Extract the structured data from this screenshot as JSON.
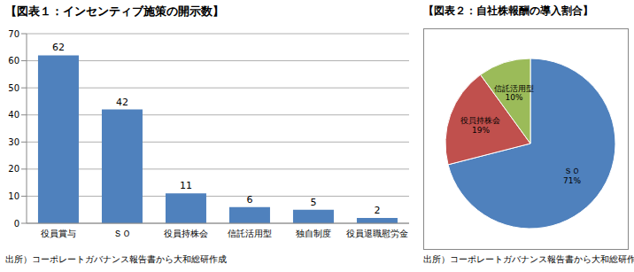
{
  "chart_data": [
    {
      "type": "bar",
      "title": "【図表１：インセンティブ施策の開示数】",
      "categories": [
        "役員賞与",
        "ＳＯ",
        "役員持株会",
        "信託活用型",
        "独自制度",
        "役員退職慰労金"
      ],
      "values": [
        62,
        42,
        11,
        6,
        5,
        2
      ],
      "color": "#4f81bd",
      "ylim": [
        0,
        70
      ],
      "yticks": [
        0,
        10,
        20,
        30,
        40,
        50,
        60,
        70
      ],
      "grid": true,
      "data_labels": true,
      "annotations": [
        "出所）コーポレートガバナンス報告書から大和総研作成"
      ]
    },
    {
      "type": "pie",
      "title": "【図表２：自社株報酬の導入割合】",
      "categories": [
        "ＳＯ",
        "役員持株会",
        "信託活用型"
      ],
      "values": [
        71,
        19,
        10
      ],
      "value_labels": [
        "71%",
        "19%",
        "10%"
      ],
      "colors": [
        "#4f81bd",
        "#c0504d",
        "#9bbb59"
      ],
      "data_labels": true,
      "annotations": [
        "出所）コーポレートガバナンス報告書から大和総研作成"
      ]
    }
  ]
}
